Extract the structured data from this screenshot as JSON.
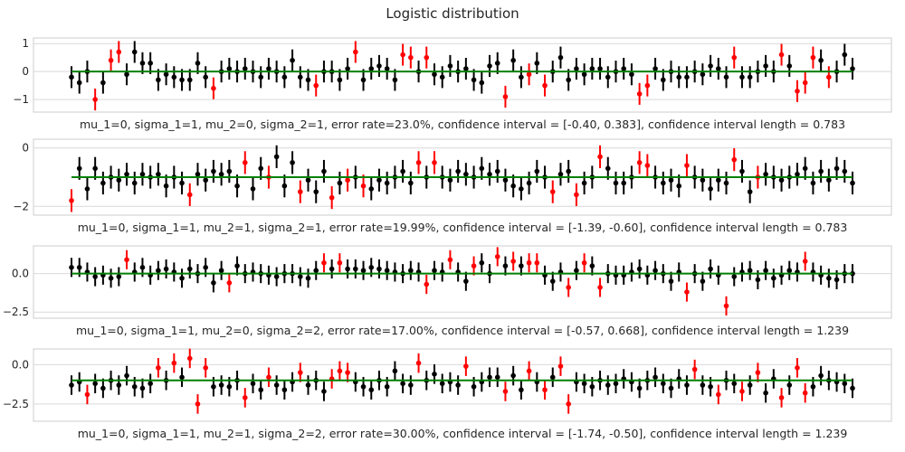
{
  "figure_title": "Logistic distribution",
  "colors": {
    "covered": "#000000",
    "missed": "#ff0000",
    "reference": "#008000",
    "grid": "#d9d9d9"
  },
  "chart_data": [
    {
      "type": "scatter",
      "style": "errorbar",
      "xlabel": "mu_1=0, sigma_1=1, mu_2=0, sigma_2=1, error rate=23.0%, confidence interval = [-0.40, 0.383], confidence interval length = 0.783",
      "ylim": [
        -1.45,
        1.2
      ],
      "yticks": [
        1,
        0,
        -1
      ],
      "ytick_labels": [
        "1",
        "0",
        "−1"
      ],
      "reference_line": 0,
      "interval_half_length": 0.39,
      "n": 100,
      "estimates": [
        -0.2,
        -0.4,
        0.0,
        -1.0,
        -0.4,
        0.4,
        0.7,
        -0.1,
        0.7,
        0.3,
        0.3,
        -0.3,
        -0.1,
        -0.2,
        -0.3,
        -0.3,
        0.3,
        -0.2,
        -0.6,
        0.0,
        0.1,
        0.0,
        0.1,
        0.0,
        -0.2,
        0.1,
        0.0,
        -0.2,
        0.4,
        -0.2,
        -0.3,
        -0.5,
        0.0,
        0.0,
        -0.3,
        0.1,
        0.7,
        -0.3,
        0.1,
        0.2,
        0.1,
        -0.3,
        0.6,
        0.5,
        0.0,
        0.5,
        -0.1,
        -0.2,
        0.2,
        0.0,
        0.1,
        -0.3,
        -0.4,
        0.2,
        0.3,
        -0.9,
        0.4,
        -0.2,
        -0.1,
        0.3,
        -0.5,
        0.0,
        0.5,
        -0.3,
        0.1,
        -0.1,
        0.1,
        0.1,
        -0.2,
        0.0,
        0.1,
        -0.1,
        -0.8,
        -0.5,
        0.1,
        -0.3,
        0.0,
        -0.2,
        -0.2,
        0.0,
        -0.1,
        0.2,
        0.1,
        -0.2,
        0.5,
        -0.2,
        -0.2,
        0.0,
        0.2,
        0.0,
        0.6,
        0.2,
        -0.7,
        -0.4,
        0.5,
        0.4,
        -0.2,
        0.0,
        0.6,
        0.1
      ],
      "missed": [
        3,
        5,
        6,
        18,
        31,
        36,
        42,
        43,
        45,
        55,
        58,
        60,
        72,
        73,
        84,
        90,
        92,
        93,
        94,
        96
      ]
    },
    {
      "type": "scatter",
      "style": "errorbar",
      "xlabel": "mu_1=0, sigma_1=1, mu_2=1, sigma_2=1, error rate=19.99%, confidence interval = [-1.39, -0.60], confidence interval length = 0.783",
      "ylim": [
        -2.3,
        0.3
      ],
      "yticks": [
        0,
        -2
      ],
      "ytick_labels": [
        "0",
        "−2"
      ],
      "reference_line": -1,
      "interval_half_length": 0.39,
      "n": 100,
      "estimates": [
        -1.8,
        -0.7,
        -1.4,
        -0.7,
        -1.2,
        -1.0,
        -1.1,
        -0.9,
        -1.2,
        -0.9,
        -1.0,
        -0.9,
        -1.3,
        -1.0,
        -1.2,
        -1.6,
        -0.9,
        -1.1,
        -0.8,
        -0.9,
        -0.8,
        -1.3,
        -0.5,
        -1.4,
        -0.7,
        -1.0,
        -0.3,
        -1.3,
        -0.5,
        -1.5,
        -1.1,
        -1.5,
        -0.8,
        -1.7,
        -1.2,
        -1.1,
        -1.0,
        -1.3,
        -1.4,
        -1.1,
        -1.2,
        -1.0,
        -0.8,
        -1.2,
        -0.5,
        -1.0,
        -0.5,
        -1.0,
        -1.1,
        -0.8,
        -0.9,
        -1.0,
        -0.7,
        -0.9,
        -0.8,
        -1.1,
        -1.3,
        -1.4,
        -1.2,
        -0.8,
        -1.0,
        -1.5,
        -0.9,
        -0.8,
        -1.6,
        -1.2,
        -1.0,
        -0.3,
        -0.7,
        -1.2,
        -1.2,
        -1.0,
        -0.5,
        -0.6,
        -1.0,
        -1.2,
        -1.1,
        -1.3,
        -0.6,
        -1.0,
        -1.1,
        -1.4,
        -1.1,
        -1.2,
        -0.4,
        -0.8,
        -1.5,
        -1.0,
        -0.9,
        -1.0,
        -1.1,
        -1.0,
        -0.9,
        -0.7,
        -1.2,
        -0.8,
        -1.1,
        -0.7,
        -0.8,
        -1.2
      ],
      "missed": [
        0,
        15,
        22,
        25,
        29,
        33,
        35,
        37,
        44,
        46,
        61,
        64,
        67,
        72,
        73,
        78,
        84,
        87
      ]
    },
    {
      "type": "scatter",
      "style": "errorbar",
      "xlabel": "mu_1=0, sigma_1=1, mu_2=0, sigma_2=2, error rate=17.00%, confidence interval = [-0.57, 0.668], confidence interval length = 1.239",
      "ylim": [
        -2.9,
        1.8
      ],
      "yticks": [
        0,
        -2.5
      ],
      "ytick_labels": [
        "0.0",
        "−2.5"
      ],
      "reference_line": 0,
      "interval_half_length": 0.62,
      "n": 100,
      "estimates": [
        0.4,
        0.4,
        0.1,
        -0.2,
        -0.1,
        -0.3,
        -0.2,
        0.9,
        0.1,
        0.4,
        -0.1,
        0.2,
        0.3,
        0.1,
        -0.3,
        0.3,
        0.0,
        0.4,
        -0.6,
        0.2,
        -0.6,
        0.5,
        0.0,
        0.1,
        0.0,
        -0.1,
        -0.2,
        0.0,
        0.0,
        -0.2,
        -0.3,
        0.2,
        0.7,
        0.3,
        0.7,
        0.3,
        0.3,
        0.2,
        0.4,
        0.3,
        0.2,
        0.1,
        0.0,
        0.2,
        0.1,
        -0.7,
        0.2,
        0.1,
        0.9,
        0.1,
        -0.5,
        0.5,
        0.7,
        0.0,
        1.1,
        0.5,
        0.8,
        0.5,
        0.7,
        0.7,
        -0.1,
        -0.5,
        0.1,
        -0.9,
        0.2,
        0.7,
        0.5,
        -0.9,
        0.0,
        -0.1,
        -0.1,
        0.1,
        0.3,
        -0.1,
        0.2,
        0.0,
        -0.5,
        0.1,
        -1.2,
        0.0,
        -0.5,
        0.3,
        -0.1,
        -2.1,
        -0.2,
        0.1,
        0.2,
        -0.4,
        0.2,
        -0.3,
        -0.1,
        0.2,
        0.1,
        0.8,
        0.1,
        -0.1,
        -0.3,
        -0.4,
        0.0,
        0.0
      ],
      "missed": [
        7,
        20,
        32,
        34,
        45,
        48,
        51,
        54,
        56,
        58,
        59,
        63,
        65,
        67,
        78,
        83,
        93
      ]
    },
    {
      "type": "scatter",
      "style": "errorbar",
      "xlabel": "mu_1=0, sigma_1=1, mu_2=1, sigma_2=2, error rate=30.00%, confidence interval = [-1.74, -0.50], confidence interval length = 1.239",
      "ylim": [
        -3.6,
        1.0
      ],
      "yticks": [
        0,
        -2.5
      ],
      "ytick_labels": [
        "0.0",
        "−2.5"
      ],
      "reference_line": -1,
      "interval_half_length": 0.62,
      "n": 100,
      "estimates": [
        -1.3,
        -1.1,
        -1.9,
        -1.2,
        -1.5,
        -1.0,
        -1.3,
        -0.7,
        -1.4,
        -1.5,
        -1.2,
        -0.2,
        -1.0,
        0.1,
        -0.8,
        0.4,
        -2.5,
        -0.2,
        -1.4,
        -1.3,
        -1.4,
        -1.0,
        -2.1,
        -1.2,
        -1.6,
        -0.8,
        -1.3,
        -1.6,
        -1.1,
        -0.5,
        -1.3,
        -1.0,
        -1.7,
        -0.9,
        -0.4,
        -0.5,
        -1.1,
        -1.4,
        -1.6,
        -1.0,
        -1.4,
        -0.4,
        -1.2,
        -1.3,
        0.1,
        -1.0,
        -0.6,
        -1.2,
        -1.1,
        -1.3,
        -0.1,
        -1.4,
        -1.1,
        -0.8,
        -0.8,
        -1.7,
        -0.7,
        -1.6,
        -0.4,
        -1.1,
        -1.6,
        -0.8,
        -0.1,
        -2.5,
        -1.1,
        -1.2,
        -1.4,
        -1.0,
        -1.3,
        -1.2,
        -0.9,
        -1.1,
        -1.5,
        -1.0,
        -0.8,
        -1.2,
        -1.5,
        -0.9,
        -1.3,
        -0.3,
        -1.3,
        -1.4,
        -1.9,
        -1.0,
        -1.2,
        -1.7,
        -1.3,
        -0.5,
        -1.8,
        -0.9,
        -2.1,
        -1.3,
        -0.2,
        -1.8,
        -1.4,
        -0.7,
        -1.0,
        -1.1,
        -1.2,
        -1.5
      ],
      "missed": [
        2,
        11,
        13,
        15,
        16,
        17,
        22,
        25,
        29,
        33,
        34,
        35,
        44,
        50,
        55,
        58,
        60,
        62,
        63,
        79,
        82,
        85,
        87,
        90,
        92,
        93
      ]
    }
  ]
}
